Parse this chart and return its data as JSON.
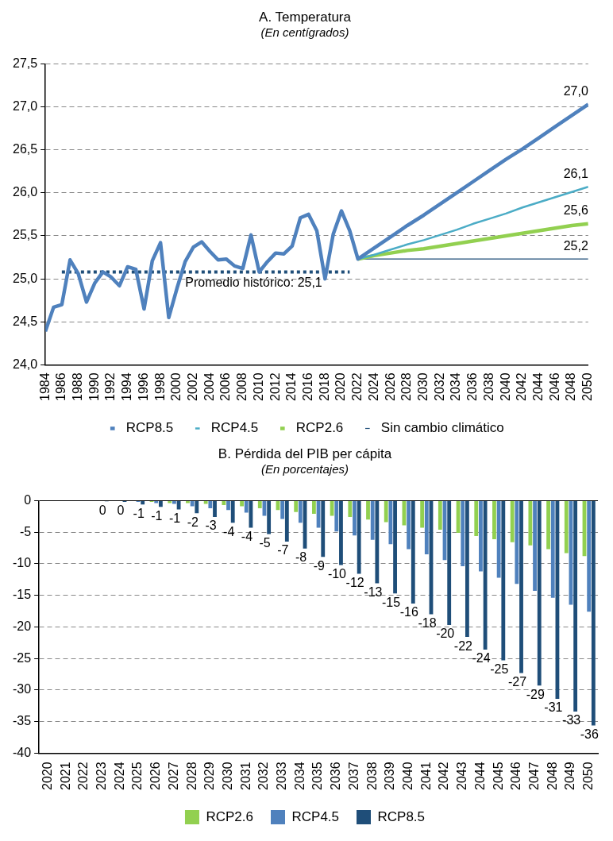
{
  "chart_data": [
    {
      "type": "line",
      "title": "A. Temperatura",
      "subtitle": "(En centígrados)",
      "xlim": [
        1984,
        2050
      ],
      "xticks": [
        1984,
        1986,
        1988,
        1990,
        1992,
        1994,
        1996,
        1998,
        2000,
        2002,
        2004,
        2006,
        2008,
        2010,
        2012,
        2014,
        2016,
        2018,
        2020,
        2022,
        2024,
        2026,
        2028,
        2030,
        2032,
        2034,
        2036,
        2038,
        2040,
        2042,
        2044,
        2046,
        2048,
        2050
      ],
      "ylim": [
        24,
        27.5
      ],
      "yticks": [
        {
          "value": 24,
          "label": "24,0"
        },
        {
          "value": 24.5,
          "label": "24,5"
        },
        {
          "value": 25,
          "label": "25,0"
        },
        {
          "value": 25.5,
          "label": "25,5"
        },
        {
          "value": 26,
          "label": "26,0"
        },
        {
          "value": 26.5,
          "label": "26,5"
        },
        {
          "value": 27,
          "label": "27,0"
        },
        {
          "value": 27.5,
          "label": "27,5"
        }
      ],
      "grid": "y",
      "legend": "bottom",
      "annotations": [
        {
          "text": "Promedio histórico: 25,1",
          "x": 2001,
          "y": 25.08
        }
      ],
      "series": [
        {
          "name": "RCP8.5",
          "color": "#4f81bd",
          "x": [
            1984,
            1985,
            1986,
            1987,
            1988,
            1989,
            1990,
            1991,
            1992,
            1993,
            1994,
            1995,
            1996,
            1997,
            1998,
            1999,
            2000,
            2001,
            2002,
            2003,
            2004,
            2005,
            2006,
            2007,
            2008,
            2009,
            2010,
            2011,
            2012,
            2013,
            2014,
            2015,
            2016,
            2017,
            2018,
            2019,
            2020,
            2021,
            2022,
            2024,
            2026,
            2028,
            2030,
            2032,
            2034,
            2036,
            2038,
            2040,
            2042,
            2044,
            2046,
            2048,
            2050
          ],
          "values": [
            24.39,
            24.67,
            24.7,
            25.22,
            25.06,
            24.73,
            24.95,
            25.08,
            25.02,
            24.92,
            25.14,
            25.11,
            24.65,
            25.21,
            25.42,
            24.55,
            24.89,
            25.2,
            25.37,
            25.43,
            25.32,
            25.22,
            25.23,
            25.15,
            25.12,
            25.51,
            25.08,
            25.2,
            25.3,
            25.29,
            25.38,
            25.71,
            25.75,
            25.56,
            25.0,
            25.52,
            25.79,
            25.56,
            25.23,
            25.36,
            25.49,
            25.62,
            25.74,
            25.87,
            26.0,
            26.13,
            26.26,
            26.39,
            26.51,
            26.64,
            26.77,
            26.9,
            27.03
          ],
          "value_labels": [
            null,
            null,
            null,
            null,
            null,
            null,
            null,
            null,
            null,
            null,
            null,
            null,
            null,
            null,
            null,
            null,
            null,
            null,
            null,
            null,
            null,
            null,
            null,
            null,
            null,
            null,
            null,
            null,
            null,
            null,
            null,
            null,
            null,
            null,
            null,
            null,
            null,
            null,
            null,
            null,
            null,
            null,
            null,
            null,
            null,
            null,
            null,
            null,
            null,
            null,
            null,
            null,
            "27,0"
          ]
        },
        {
          "name": "RCP4.5",
          "color": "#4bacc6",
          "x": [
            2022,
            2024,
            2026,
            2028,
            2030,
            2032,
            2034,
            2036,
            2038,
            2040,
            2042,
            2044,
            2046,
            2048,
            2050
          ],
          "values": [
            25.23,
            25.28,
            25.34,
            25.4,
            25.45,
            25.51,
            25.57,
            25.64,
            25.7,
            25.76,
            25.83,
            25.89,
            25.95,
            26.01,
            26.07
          ],
          "value_labels": [
            null,
            null,
            null,
            null,
            null,
            null,
            null,
            null,
            null,
            null,
            null,
            null,
            null,
            null,
            "26,1"
          ]
        },
        {
          "name": "RCP2.6",
          "color": "#92d050",
          "x": [
            2022,
            2024,
            2026,
            2028,
            2030,
            2032,
            2034,
            2036,
            2038,
            2040,
            2042,
            2044,
            2046,
            2048,
            2050
          ],
          "values": [
            25.23,
            25.27,
            25.3,
            25.33,
            25.35,
            25.38,
            25.41,
            25.44,
            25.47,
            25.5,
            25.53,
            25.56,
            25.59,
            25.62,
            25.64
          ],
          "value_labels": [
            null,
            null,
            null,
            null,
            null,
            null,
            null,
            null,
            null,
            null,
            null,
            null,
            null,
            null,
            "25,6"
          ]
        },
        {
          "name": "Sin cambio climático",
          "color": "#1f4e79",
          "x": [
            2022,
            2050
          ],
          "values": [
            25.23,
            25.23
          ],
          "value_labels": [
            null,
            "25,2"
          ]
        },
        {
          "color": "#1f4e79",
          "x": [
            1986,
            2021
          ],
          "values": [
            25.08,
            25.08
          ],
          "line_style": "dotted"
        }
      ]
    },
    {
      "type": "bar",
      "title": "B. Pérdida del PIB per cápita",
      "subtitle": "(En porcentajes)",
      "categories": [
        "2020",
        "2021",
        "2022",
        "2023",
        "2024",
        "2025",
        "2026",
        "2027",
        "2028",
        "2029",
        "2030",
        "2031",
        "2032",
        "2033",
        "2034",
        "2035",
        "2036",
        "2037",
        "2038",
        "2039",
        "2040",
        "2041",
        "2042",
        "2043",
        "2044",
        "2045",
        "2046",
        "2047",
        "2048",
        "2049",
        "2050"
      ],
      "ylim": [
        -40,
        0
      ],
      "yticks": [
        -40,
        -35,
        -30,
        -25,
        -20,
        -15,
        -10,
        -5,
        0
      ],
      "grid": "y",
      "legend": "bottom",
      "series": [
        {
          "name": "RCP2.6",
          "color": "#92d050",
          "values": [
            0,
            0,
            0,
            0,
            0,
            0,
            -0.2,
            -0.4,
            -0.4,
            -0.5,
            -0.7,
            -0.9,
            -1.2,
            -1.5,
            -1.8,
            -2.1,
            -2.4,
            -2.6,
            -3.0,
            -3.4,
            -3.9,
            -4.3,
            -4.6,
            -5.1,
            -5.6,
            -6.1,
            -6.6,
            -7.1,
            -7.7,
            -8.3,
            -8.8
          ]
        },
        {
          "name": "RCP4.5",
          "color": "#4f81bd",
          "values": [
            0,
            0,
            0,
            0,
            0,
            -0.2,
            -0.4,
            -0.5,
            -0.9,
            -1.2,
            -1.5,
            -1.9,
            -2.4,
            -2.9,
            -3.5,
            -4.3,
            -4.9,
            -5.5,
            -6.2,
            -6.9,
            -7.7,
            -8.5,
            -9.4,
            -10.4,
            -11.2,
            -12.2,
            -13.2,
            -14.3,
            -15.4,
            -16.5,
            -17.6
          ]
        },
        {
          "name": "RCP8.5",
          "color": "#1f4e79",
          "values": [
            0,
            0,
            0,
            -0.1,
            -0.2,
            -0.6,
            -1.0,
            -1.4,
            -2.0,
            -2.6,
            -3.5,
            -4.3,
            -5.3,
            -6.5,
            -7.6,
            -8.9,
            -10.2,
            -11.6,
            -13.1,
            -14.7,
            -16.3,
            -18.0,
            -19.7,
            -21.6,
            -23.6,
            -25.3,
            -27.3,
            -29.3,
            -31.4,
            -33.4,
            -35.6
          ],
          "value_labels": [
            null,
            null,
            null,
            "0",
            "0",
            "-1",
            "-1",
            "-1",
            "-2",
            "-3",
            "-4",
            "-4",
            "-5",
            "-7",
            "-8",
            "-9",
            "-10",
            "-12",
            "-13",
            "-15",
            "-16",
            "-18",
            "-20",
            "-22",
            "-24",
            "-25",
            "-27",
            "-29",
            "-31",
            "-33",
            "-36"
          ]
        }
      ]
    }
  ]
}
